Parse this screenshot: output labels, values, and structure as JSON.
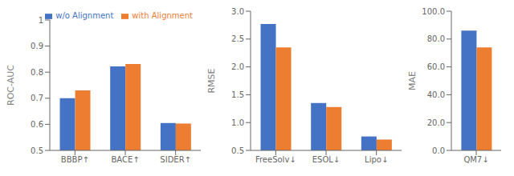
{
  "chart_data": [
    {
      "type": "bar",
      "ylabel": "ROC-AUC",
      "categories": [
        "BBBP↑",
        "BACE↑",
        "SIDER↑"
      ],
      "series": [
        {
          "name": "w/o Alignment",
          "color": "#4472C4",
          "values": [
            0.7,
            0.822,
            0.605
          ]
        },
        {
          "name": "with Alignment",
          "color": "#ED7D31",
          "values": [
            0.73,
            0.831,
            0.603
          ]
        }
      ],
      "ylim": [
        0.5,
        1.0
      ],
      "yticks": [
        0.5,
        0.6,
        0.7,
        0.8,
        0.9,
        1
      ],
      "grid": false,
      "legend": "upper right"
    },
    {
      "type": "bar",
      "ylabel": "RMSE",
      "categories": [
        "FreeSolv↓",
        "ESOL↓",
        "Lipo↓"
      ],
      "series": [
        {
          "name": "w/o Alignment",
          "color": "#4472C4",
          "values": [
            2.77,
            1.35,
            0.75
          ]
        },
        {
          "name": "with Alignment",
          "color": "#ED7D31",
          "values": [
            2.35,
            1.28,
            0.695
          ]
        }
      ],
      "ylim": [
        0.5,
        3.0
      ],
      "yticks": [
        0.5,
        {
          "value": 1,
          "label": "1.0"
        },
        1.5,
        {
          "value": 2,
          "label": "2.0"
        },
        2.5,
        {
          "value": 3,
          "label": "3.0"
        }
      ],
      "grid": false
    },
    {
      "type": "bar",
      "ylabel": "MAE",
      "categories": [
        "QM7↓"
      ],
      "series": [
        {
          "name": "w/o Alignment",
          "color": "#4472C4",
          "values": [
            86.0
          ]
        },
        {
          "name": "with Alignment",
          "color": "#ED7D31",
          "values": [
            74.0
          ]
        }
      ],
      "ylim": [
        0.0,
        100.0
      ],
      "yticks": [
        {
          "value": 0,
          "label": "0.0"
        },
        {
          "value": 20,
          "label": "20.0"
        },
        {
          "value": 40,
          "label": "40.0"
        },
        {
          "value": 60,
          "label": "60.0"
        },
        {
          "value": 80,
          "label": "80.0"
        },
        {
          "value": 100,
          "label": "100.0"
        }
      ],
      "grid": false
    }
  ]
}
